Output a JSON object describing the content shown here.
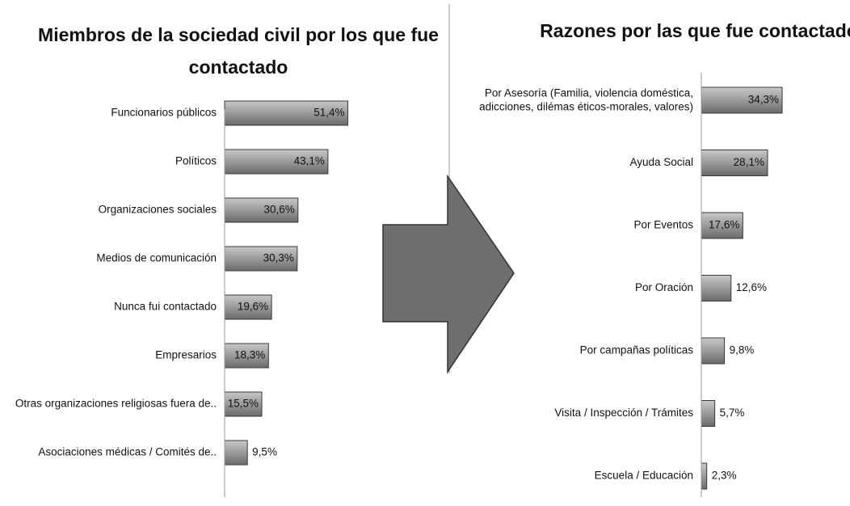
{
  "chart_data": [
    {
      "type": "hbar",
      "title": "Miembros de la sociedad civil por los que fue\ncontactado",
      "categories": [
        "Funcionarios públicos",
        "Políticos",
        "Organizaciones sociales",
        "Medios de comunicación",
        "Nunca fui contactado",
        "Empresarios",
        "Otras organizaciones religiosas fuera de..",
        "Asociaciones médicas / Comités de.."
      ],
      "values": [
        51.4,
        43.1,
        30.6,
        30.3,
        19.6,
        18.3,
        15.5,
        9.5
      ],
      "value_labels": [
        "51,4%",
        "43,1%",
        "30,6%",
        "30,3%",
        "19,6%",
        "18,3%",
        "15,5%",
        "9,5%"
      ],
      "color": "#9a9a9a",
      "xlim": [
        0,
        60
      ]
    },
    {
      "type": "hbar",
      "title": "Razones por las que fue contactado",
      "categories": [
        "Por Asesoría (Familia,  violencia doméstica,\nadicciones, dilémas éticos-morales, valores)",
        "Ayuda Social",
        "Por Eventos",
        "Por Oración",
        "Por campañas políticas",
        "Visita / Inspección / Trámites",
        "Escuela / Educación"
      ],
      "values": [
        34.3,
        28.1,
        17.6,
        12.6,
        9.8,
        5.7,
        2.3
      ],
      "value_labels": [
        "34,3%",
        "28,1%",
        "17,6%",
        "12,6%",
        "9,8%",
        "5,7%",
        "2,3%"
      ],
      "color": "#9a9a9a",
      "xlim": [
        0,
        60
      ]
    }
  ]
}
